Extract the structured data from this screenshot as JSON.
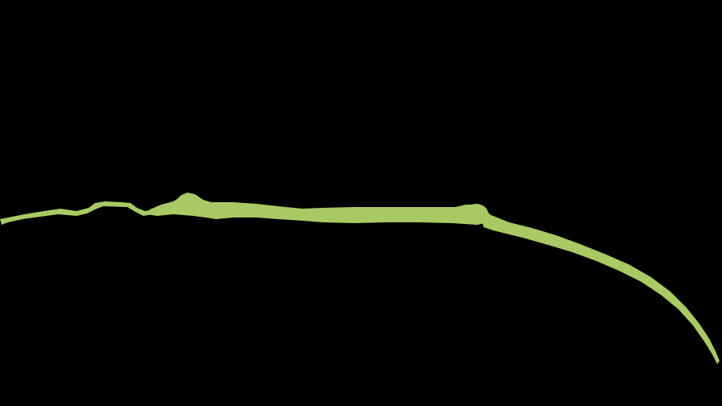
{
  "scene": {
    "background_color": "#000000",
    "stroke_color": "#a8c963",
    "subject": "green-brush-stroke"
  }
}
